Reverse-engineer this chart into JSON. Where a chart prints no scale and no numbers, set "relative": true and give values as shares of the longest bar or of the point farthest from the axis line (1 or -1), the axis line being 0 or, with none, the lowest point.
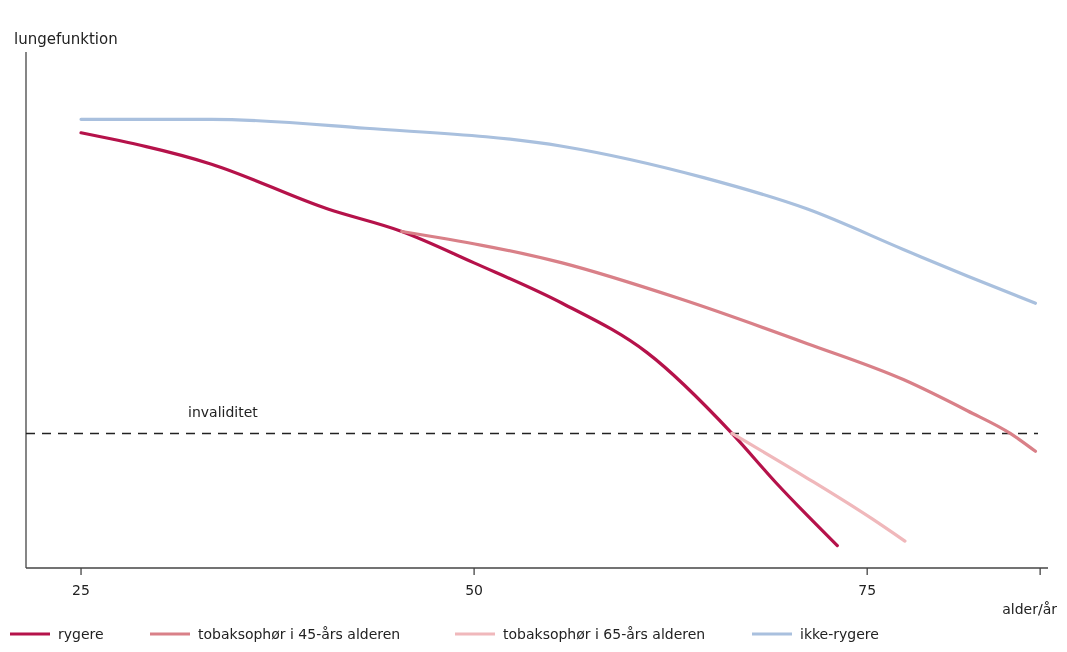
{
  "chart_data": {
    "type": "line",
    "relative": true,
    "ylabel": "lungefunktion",
    "xlabel": "alder/år",
    "xlim": [
      21.5,
      86.5
    ],
    "xticks": [
      25,
      50,
      75,
      {
        "value": 86,
        "label": null
      }
    ],
    "legend": "bottom",
    "line_style": "solid",
    "series": [
      {
        "name": "rygere",
        "color": "#b5124a",
        "x": [
          25,
          33.3,
          40.7,
          45.4,
          50,
          55.6,
          61,
          66.4,
          69.2,
          73.1
        ],
        "values": [
          0.97,
          0.9,
          0.8,
          0.75,
          0.68,
          0.59,
          0.48,
          0.3,
          0.19,
          0.05
        ]
      },
      {
        "name": "tobaksophør i 45-års alderen",
        "color": "#d98088",
        "x": [
          45.4,
          55.6,
          63.1,
          71.2,
          77.3,
          81.4,
          84.1,
          85.7
        ],
        "values": [
          0.75,
          0.68,
          0.6,
          0.5,
          0.42,
          0.35,
          0.3,
          0.26
        ]
      },
      {
        "name": "tobaksophør i 65-års alderen",
        "color": "#f0b8bb",
        "x": [
          66.4,
          71.2,
          75.3,
          77.4
        ],
        "values": [
          0.3,
          0.2,
          0.11,
          0.06
        ]
      },
      {
        "name": "ikke-rygere",
        "color": "#a9c0de",
        "x": [
          25,
          33.3,
          43.1,
          55.6,
          64.6,
          71.2,
          77.3,
          81.4,
          85.7
        ],
        "values": [
          1,
          1,
          0.98,
          0.94,
          0.87,
          0.8,
          0.71,
          0.65,
          0.59
        ]
      }
    ],
    "ref_lines": [
      {
        "axis": "y",
        "value": 0.3,
        "label": "invaliditet",
        "color": "#222222",
        "line_style": "dashed"
      }
    ]
  }
}
